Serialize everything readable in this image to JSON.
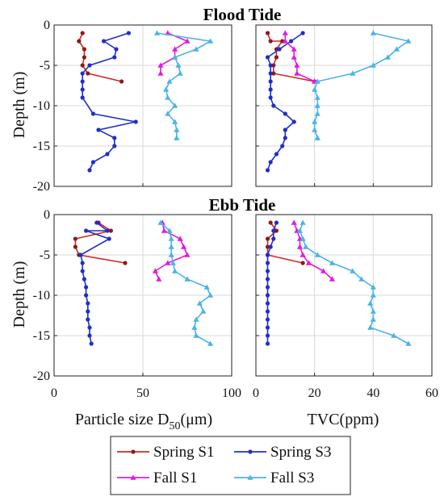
{
  "colors": {
    "spring_s1": "#d62728",
    "spring_s3": "#1f2fc8",
    "fall_s1": "#e01be0",
    "fall_s3": "#4db3e6",
    "spring_s1_marker": "#8b1a1a",
    "grid": "#d9d9d9",
    "axis": "#222222"
  },
  "labels": {
    "title_top": "Flood Tide",
    "title_bottom": "Ebb Tide",
    "ylabel": "Depth (m)",
    "xlabel_left_pre": "Particle size D",
    "xlabel_left_sub": "50",
    "xlabel_left_post": "(μm)",
    "xlabel_right": "TVC(ppm)"
  },
  "legend": {
    "items": [
      {
        "label": "Spring S1",
        "color": "#d62728",
        "marker": "dot"
      },
      {
        "label": "Spring S3",
        "color": "#1f2fc8",
        "marker": "dot"
      },
      {
        "label": "Fall S1",
        "color": "#e01be0",
        "marker": "triangle"
      },
      {
        "label": "Fall S3",
        "color": "#4db3e6",
        "marker": "triangle"
      }
    ]
  },
  "chart_data": [
    {
      "type": "line",
      "id": "flood_d50",
      "title": "Flood Tide",
      "xlabel": "",
      "ylabel": "Depth (m)",
      "xlim": [
        0,
        100
      ],
      "ylim": [
        -20,
        0
      ],
      "xticks": [
        0,
        50,
        100
      ],
      "yticks": [
        0,
        -5,
        -10,
        -15,
        -20
      ],
      "xtick_labels": [
        "",
        "",
        ""
      ],
      "ytick_labels": [
        "0",
        "-5",
        "-10",
        "-15",
        "-20"
      ],
      "grid": true,
      "series": [
        {
          "name": "Spring S1",
          "x": [
            16,
            14,
            17,
            17,
            16,
            19,
            38
          ],
          "y": [
            -1,
            -2,
            -3,
            -4,
            -5,
            -6,
            -7
          ]
        },
        {
          "name": "Spring S3",
          "x": [
            42,
            28,
            35,
            34,
            20,
            16,
            16,
            16,
            16,
            22,
            46,
            25,
            34,
            34,
            30,
            22,
            20
          ],
          "y": [
            -1,
            -2,
            -3,
            -4,
            -5,
            -6,
            -7,
            -8,
            -9,
            -11,
            -12,
            -13,
            -14,
            -15,
            -16,
            -17,
            -18
          ]
        },
        {
          "name": "Fall S1",
          "x": [
            64,
            75,
            68,
            68,
            60,
            60
          ],
          "y": [
            -1,
            -2,
            -3,
            -4,
            -5,
            -6
          ]
        },
        {
          "name": "Fall S3",
          "x": [
            58,
            88,
            80,
            68,
            70,
            71,
            65,
            63,
            64,
            68,
            64,
            68,
            69,
            69,
            69
          ],
          "y": [
            -1,
            -2,
            -3,
            -4,
            -5,
            -6,
            -7,
            -8,
            -9,
            -10,
            -11,
            -12,
            -13,
            -14,
            -14
          ]
        }
      ]
    },
    {
      "type": "line",
      "id": "flood_tvc",
      "title": "",
      "xlabel": "",
      "ylabel": "",
      "xlim": [
        0,
        60
      ],
      "ylim": [
        -20,
        0
      ],
      "xticks": [
        0,
        20,
        40,
        60
      ],
      "yticks": [
        0,
        -5,
        -10,
        -15,
        -20
      ],
      "xtick_labels": [
        "",
        "",
        "",
        ""
      ],
      "ytick_labels": [
        "",
        "",
        "",
        "",
        ""
      ],
      "grid": true,
      "series": [
        {
          "name": "Spring S1",
          "x": [
            4,
            5,
            9,
            7,
            7,
            6,
            6,
            20
          ],
          "y": [
            -1,
            -2,
            -2,
            -3,
            -4,
            -5,
            -6,
            -7
          ]
        },
        {
          "name": "Spring S3",
          "x": [
            16,
            12,
            8,
            4,
            5,
            5,
            5,
            5,
            5,
            6,
            10,
            13,
            10,
            10,
            9,
            7,
            5,
            4
          ],
          "y": [
            -1,
            -2,
            -3,
            -4,
            -5,
            -6,
            -7,
            -8,
            -9,
            -10,
            -11,
            -12,
            -13,
            -14,
            -15,
            -16,
            -17,
            -18
          ]
        },
        {
          "name": "Fall S1",
          "x": [
            10,
            10,
            13,
            13,
            14,
            14,
            20
          ],
          "y": [
            -1,
            -2,
            -3,
            -4,
            -5,
            -6,
            -7
          ]
        },
        {
          "name": "Fall S3",
          "x": [
            40,
            52,
            48,
            45,
            40,
            33,
            21,
            20,
            21,
            21,
            21,
            20,
            20,
            21,
            21
          ],
          "y": [
            -1,
            -2,
            -3,
            -4,
            -5,
            -6,
            -7,
            -8,
            -9,
            -10,
            -11,
            -12,
            -13,
            -14,
            -14
          ]
        }
      ]
    },
    {
      "type": "line",
      "id": "ebb_d50",
      "title": "Ebb Tide",
      "xlabel": "Particle size D50(μm)",
      "ylabel": "Depth (m)",
      "xlim": [
        0,
        100
      ],
      "ylim": [
        -20,
        0
      ],
      "xticks": [
        0,
        50,
        100
      ],
      "yticks": [
        0,
        -5,
        -10,
        -15,
        -20
      ],
      "xtick_labels": [
        "0",
        "50",
        "100"
      ],
      "ytick_labels": [
        "0",
        "-5",
        "-10",
        "-15",
        "-20"
      ],
      "grid": true,
      "series": [
        {
          "name": "Spring S1",
          "x": [
            25,
            32,
            12,
            12,
            14,
            40
          ],
          "y": [
            -1,
            -2,
            -3,
            -4,
            -5,
            -6
          ]
        },
        {
          "name": "Spring S3",
          "x": [
            24,
            30,
            18,
            31,
            15,
            16,
            16,
            17,
            18,
            18,
            19,
            19,
            19,
            20,
            20,
            21
          ],
          "y": [
            -1,
            -2,
            -2,
            -3,
            -5,
            -6,
            -7,
            -8,
            -9,
            -10,
            -11,
            -12,
            -13,
            -14,
            -15,
            -16
          ]
        },
        {
          "name": "Fall S1",
          "x": [
            61,
            62,
            71,
            73,
            75,
            64,
            57,
            59
          ],
          "y": [
            -1,
            -2,
            -3,
            -4,
            -5,
            -6,
            -7,
            -8
          ]
        },
        {
          "name": "Fall S3",
          "x": [
            60,
            65,
            66,
            66,
            66,
            67,
            68,
            75,
            86,
            88,
            82,
            84,
            80,
            79,
            80,
            88
          ],
          "y": [
            -1,
            -2,
            -3,
            -4,
            -5,
            -6,
            -7,
            -8,
            -9,
            -10,
            -11,
            -12,
            -13,
            -14,
            -15,
            -16
          ]
        }
      ]
    },
    {
      "type": "line",
      "id": "ebb_tvc",
      "title": "",
      "xlabel": "TVC(ppm)",
      "ylabel": "",
      "xlim": [
        0,
        60
      ],
      "ylim": [
        -20,
        0
      ],
      "xticks": [
        0,
        20,
        40,
        60
      ],
      "yticks": [
        0,
        -5,
        -10,
        -15,
        -20
      ],
      "xtick_labels": [
        "0",
        "20",
        "40",
        "60"
      ],
      "ytick_labels": [
        "",
        "",
        "",
        "",
        ""
      ],
      "grid": true,
      "series": [
        {
          "name": "Spring S1",
          "x": [
            5,
            7,
            4,
            4,
            4,
            16
          ],
          "y": [
            -1,
            -2,
            -3,
            -4,
            -5,
            -6
          ]
        },
        {
          "name": "Spring S3",
          "x": [
            7,
            6,
            6,
            5,
            4,
            4,
            4,
            4,
            4,
            4,
            4,
            4,
            4,
            4,
            4,
            4
          ],
          "y": [
            -1,
            -2,
            -3,
            -4,
            -5,
            -6,
            -7,
            -8,
            -9,
            -10,
            -11,
            -12,
            -13,
            -14,
            -15,
            -16
          ]
        },
        {
          "name": "Fall S1",
          "x": [
            13,
            14,
            15,
            15,
            16,
            18,
            23,
            26
          ],
          "y": [
            -1,
            -2,
            -3,
            -4,
            -5,
            -6,
            -7,
            -8
          ]
        },
        {
          "name": "Fall S3",
          "x": [
            16,
            15,
            16,
            17,
            21,
            26,
            33,
            36,
            40,
            40,
            39,
            40,
            40,
            39,
            47,
            52
          ],
          "y": [
            -1,
            -2,
            -3,
            -4,
            -5,
            -6,
            -7,
            -8,
            -9,
            -10,
            -11,
            -12,
            -13,
            -14,
            -15,
            -16
          ]
        }
      ]
    }
  ]
}
